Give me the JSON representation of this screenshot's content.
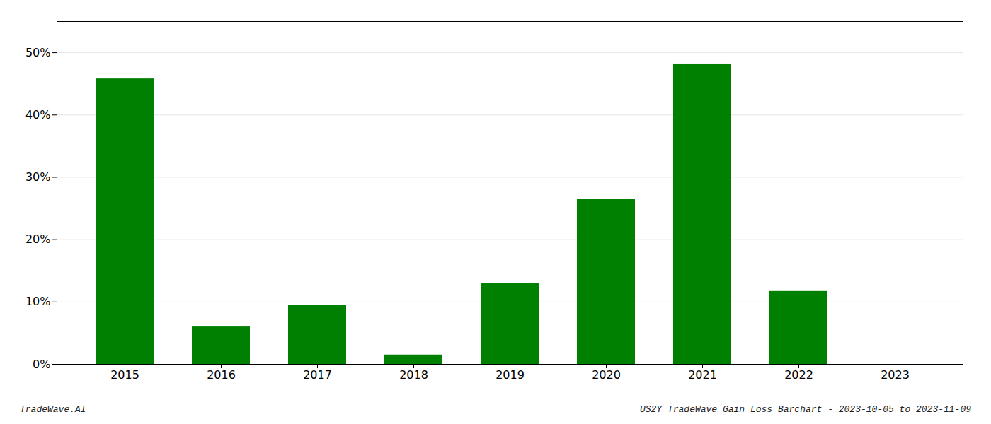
{
  "chart_data": {
    "type": "bar",
    "categories": [
      "2015",
      "2016",
      "2017",
      "2018",
      "2019",
      "2020",
      "2021",
      "2022",
      "2023"
    ],
    "values": [
      0.458,
      0.06,
      0.095,
      0.015,
      0.13,
      0.265,
      0.482,
      0.117,
      0.0
    ],
    "color": "#008000",
    "ylim": [
      0,
      0.55
    ],
    "yticks": [
      {
        "value": 0.0,
        "label": "0%"
      },
      {
        "value": 0.1,
        "label": "10%"
      },
      {
        "value": 0.2,
        "label": "20%"
      },
      {
        "value": 0.3,
        "label": "30%"
      },
      {
        "value": 0.4,
        "label": "40%"
      },
      {
        "value": 0.5,
        "label": "50%"
      }
    ],
    "grid": true,
    "annotations": [
      "TradeWave.AI",
      "US2Y TradeWave Gain Loss Barchart - 2023-10-05 to 2023-11-09"
    ]
  }
}
